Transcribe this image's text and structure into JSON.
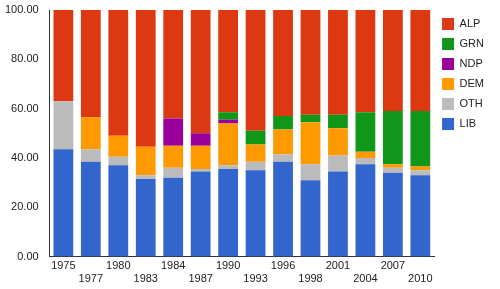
{
  "chart_data": {
    "type": "bar",
    "stacked": true,
    "legend": "right",
    "grid": false,
    "categories": [
      "1975",
      "1977",
      "1980",
      "1983",
      "1984",
      "1987",
      "1990",
      "1993",
      "1996",
      "1998",
      "2001",
      "2004",
      "2007",
      "2010"
    ],
    "series": [
      {
        "name": "LIB",
        "color": "#3366cc",
        "values": [
          43.5,
          38.5,
          37,
          31.5,
          32,
          34.5,
          35.5,
          35,
          38.5,
          31,
          34.5,
          37.5,
          34,
          33
        ]
      },
      {
        "name": "OTH",
        "color": "#bbbbbb",
        "values": [
          19.5,
          5,
          3.5,
          1.5,
          4,
          1,
          1.5,
          3.5,
          3,
          6.5,
          6.5,
          2.5,
          2,
          2
        ]
      },
      {
        "name": "DEM",
        "color": "#ff9900",
        "values": [
          0,
          13,
          8.5,
          11.5,
          9,
          9.5,
          17,
          7,
          10,
          17,
          11,
          2.5,
          1.5,
          1.5
        ]
      },
      {
        "name": "NDP",
        "color": "#990099",
        "values": [
          0,
          0,
          0,
          0,
          11,
          5,
          1.5,
          0,
          0,
          0,
          0,
          0,
          0,
          0
        ]
      },
      {
        "name": "GRN",
        "color": "#109618",
        "values": [
          0,
          0,
          0,
          0,
          0,
          0,
          3,
          5.5,
          5.5,
          3,
          5.5,
          16,
          21.5,
          22.5
        ]
      },
      {
        "name": "ALP",
        "color": "#dc3912",
        "values": [
          37,
          43.5,
          51,
          55.5,
          44,
          50,
          41.5,
          49,
          43,
          42.5,
          42.5,
          41.5,
          41,
          41
        ]
      }
    ],
    "ylim": [
      0,
      100
    ],
    "yticks": [
      {
        "value": 0,
        "label": "0.00"
      },
      {
        "value": 20,
        "label": "20.00"
      },
      {
        "value": 40,
        "label": "40.00"
      },
      {
        "value": 60,
        "label": "60.00"
      },
      {
        "value": 80,
        "label": "80.00"
      },
      {
        "value": 100,
        "label": "100.00"
      }
    ]
  }
}
